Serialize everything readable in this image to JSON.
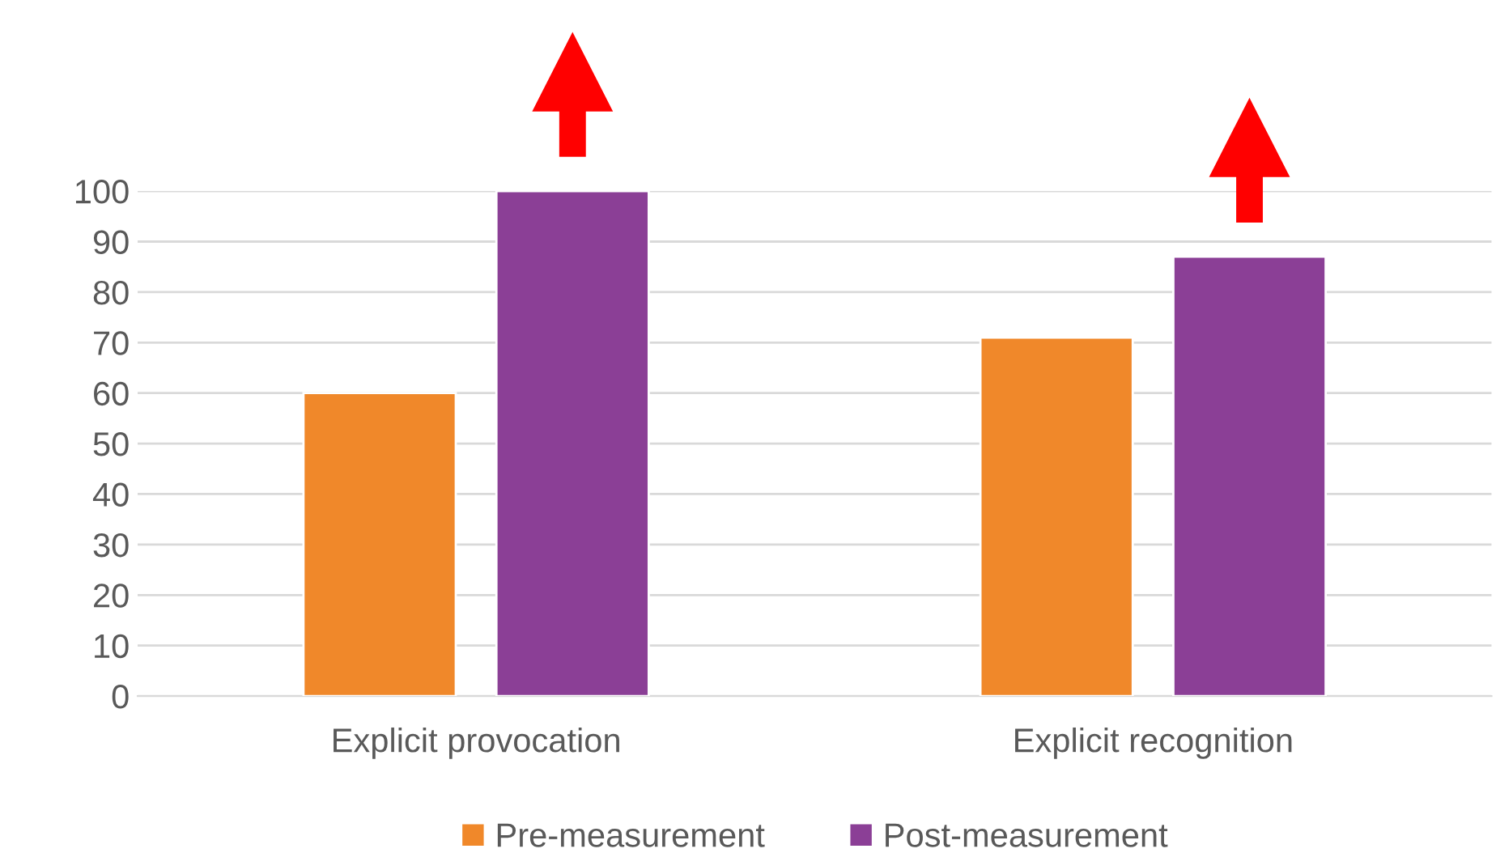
{
  "chart_data": {
    "type": "bar",
    "categories": [
      "Explicit provocation",
      "Explicit recognition"
    ],
    "series": [
      {
        "name": "Pre-measurement",
        "color": "#f0882a",
        "values": [
          60,
          71
        ]
      },
      {
        "name": "Post-measurement",
        "color": "#8b3f96",
        "values": [
          100,
          87
        ]
      }
    ],
    "ylim": [
      0,
      100
    ],
    "yticks": [
      0,
      10,
      20,
      30,
      40,
      50,
      60,
      70,
      80,
      90,
      100
    ],
    "grid": "y",
    "legend": "bottom"
  }
}
